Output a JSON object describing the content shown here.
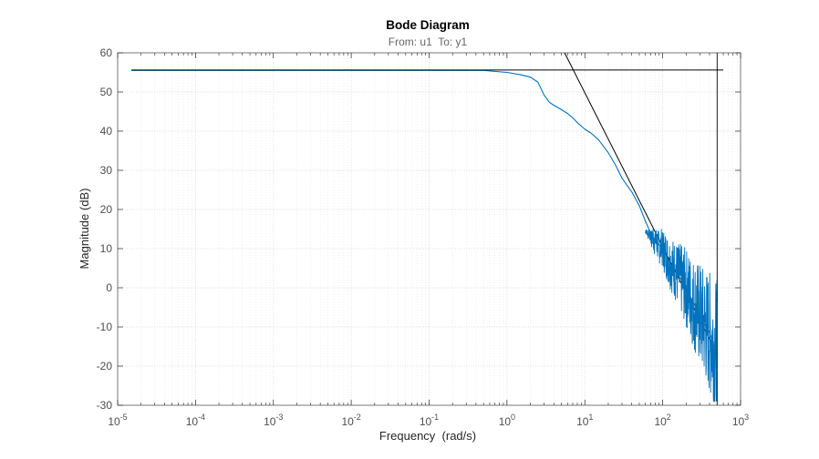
{
  "chart_data": {
    "type": "line",
    "title": "Bode Diagram",
    "subtitle": "From: u1  To: y1",
    "xlabel": "Frequency  (rad/s)",
    "ylabel": "Magnitude (dB)",
    "xscale": "log",
    "xlim": [
      1e-05,
      1000
    ],
    "ylim": [
      -30,
      60
    ],
    "x_ticks": [
      {
        "value": 1e-05,
        "base": "10",
        "exp": "-5"
      },
      {
        "value": 0.0001,
        "base": "10",
        "exp": "-4"
      },
      {
        "value": 0.001,
        "base": "10",
        "exp": "-3"
      },
      {
        "value": 0.01,
        "base": "10",
        "exp": "-2"
      },
      {
        "value": 0.1,
        "base": "10",
        "exp": "-1"
      },
      {
        "value": 1,
        "base": "10",
        "exp": "0"
      },
      {
        "value": 10,
        "base": "10",
        "exp": "1"
      },
      {
        "value": 100,
        "base": "10",
        "exp": "2"
      },
      {
        "value": 1000,
        "base": "10",
        "exp": "3"
      }
    ],
    "y_ticks": [
      {
        "value": 60,
        "label": "60"
      },
      {
        "value": 50,
        "label": "50"
      },
      {
        "value": 40,
        "label": "40"
      },
      {
        "value": 30,
        "label": "30"
      },
      {
        "value": 20,
        "label": "20"
      },
      {
        "value": 10,
        "label": "10"
      },
      {
        "value": 0,
        "label": "0"
      },
      {
        "value": -10,
        "label": "-10"
      },
      {
        "value": -20,
        "label": "-20"
      },
      {
        "value": -30,
        "label": "-30"
      }
    ],
    "grid": true,
    "legend": false,
    "colors": {
      "measured": "#0072BD",
      "asymptote": "#000000",
      "grid_major": "#d4d4d4",
      "grid_minor": "#e6e6e6",
      "axis": "#262626",
      "tick_label": "#4d4d4d",
      "subtitle": "#666666"
    },
    "series": [
      {
        "style": "measured",
        "x": [
          1.5e-05,
          0.0001,
          0.001,
          0.01,
          0.1,
          0.5,
          1.0,
          1.5,
          2.0,
          2.5,
          3.0,
          3.5,
          4.0,
          5.0,
          6.0,
          7.0,
          8.0,
          10,
          12,
          15,
          20,
          25,
          30,
          40,
          50,
          60,
          70,
          80,
          100,
          120,
          150,
          200,
          250,
          300,
          350,
          400,
          450,
          500
        ],
        "y": [
          55.5,
          55.5,
          55.5,
          55.5,
          55.5,
          55.5,
          55.0,
          54.4,
          53.8,
          52.5,
          49.2,
          47.4,
          46.6,
          45.5,
          44.5,
          43.4,
          42.2,
          40.5,
          39.5,
          37.8,
          34.5,
          31.2,
          28.0,
          24.5,
          21.0,
          17.0,
          14.0,
          12.0,
          10.0,
          7.0,
          4.0,
          0.0,
          -4.0,
          -7.0,
          -9.5,
          -11.5,
          -14.0,
          -16.0
        ]
      },
      {
        "style": "asymptote",
        "x": [
          1.5e-05,
          600
        ],
        "y": [
          55.6,
          55.6
        ]
      },
      {
        "style": "asymptote",
        "x": [
          5.5,
          500
        ],
        "y": [
          60,
          -17
        ]
      }
    ],
    "noise_band": {
      "x_start": 60,
      "x_end": 500,
      "amplitude_db": [
        3,
        18
      ],
      "min_db": -29
    },
    "vertical_line": {
      "x": 500,
      "y": [
        60,
        -30
      ]
    }
  }
}
